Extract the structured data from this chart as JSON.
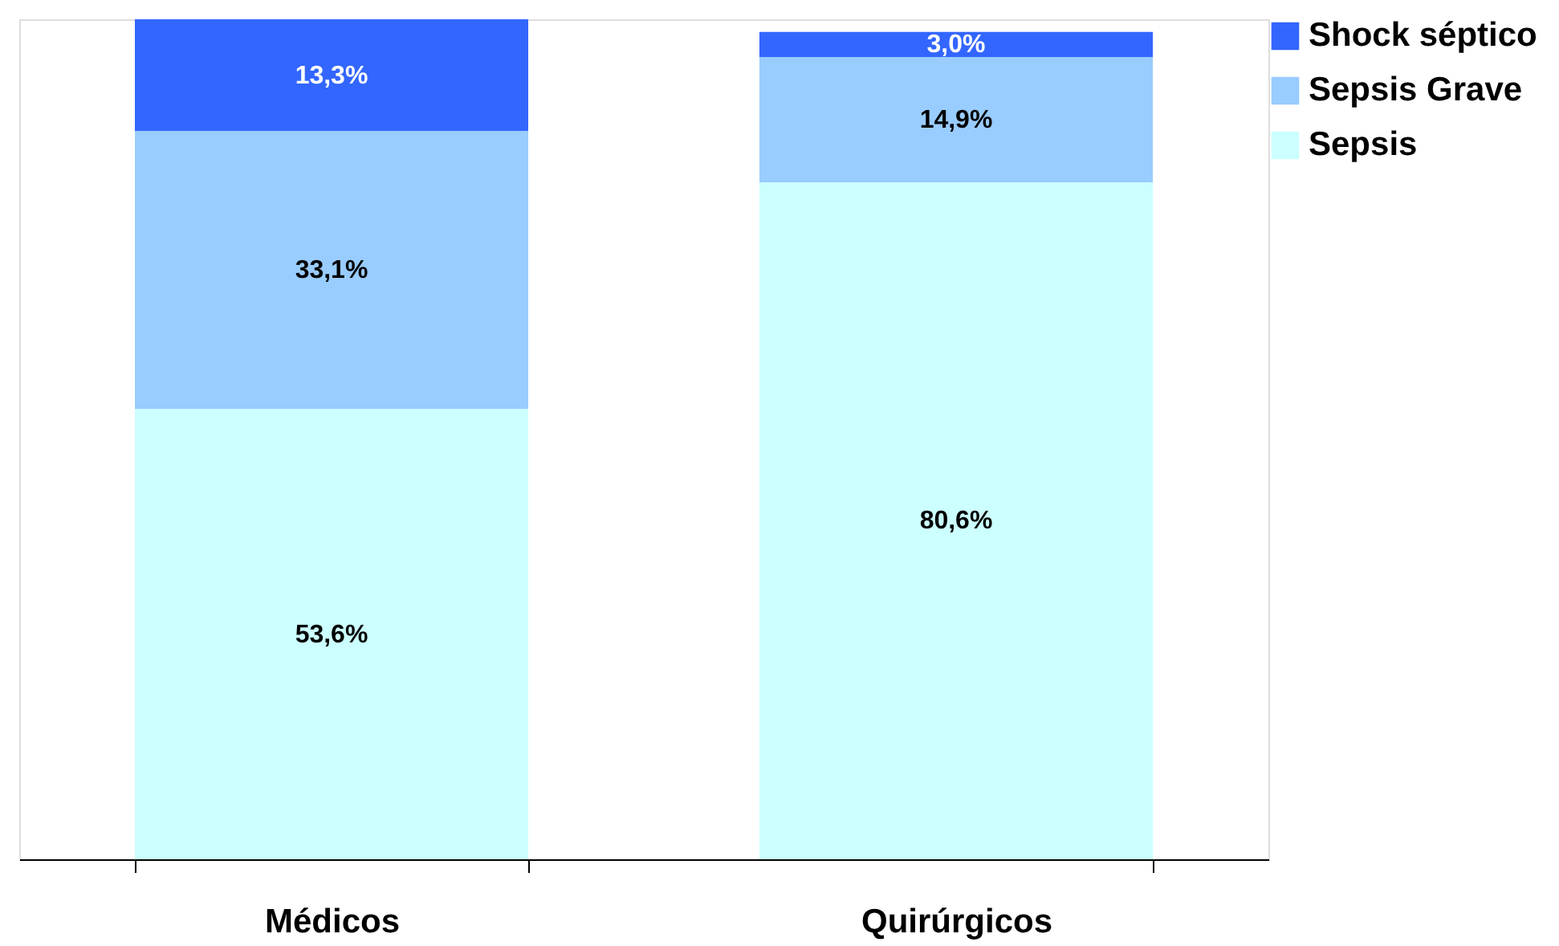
{
  "chart_data": {
    "type": "bar",
    "stacked": true,
    "categories": [
      "Médicos",
      "Quirúrgicos"
    ],
    "series": [
      {
        "name": "Sepsis",
        "color": "#ccffff",
        "values": [
          53.6,
          80.6
        ],
        "value_labels": [
          "53,6%",
          "80,6%"
        ]
      },
      {
        "name": "Sepsis Grave",
        "color": "#99ccff",
        "values": [
          33.1,
          14.9
        ],
        "value_labels": [
          "33,1%",
          "14,9%"
        ]
      },
      {
        "name": "Shock séptico",
        "color": "#3366ff",
        "values": [
          13.3,
          3.0
        ],
        "value_labels": [
          "13,3%",
          "3,0%"
        ]
      }
    ],
    "legend": "right",
    "grid": false
  }
}
